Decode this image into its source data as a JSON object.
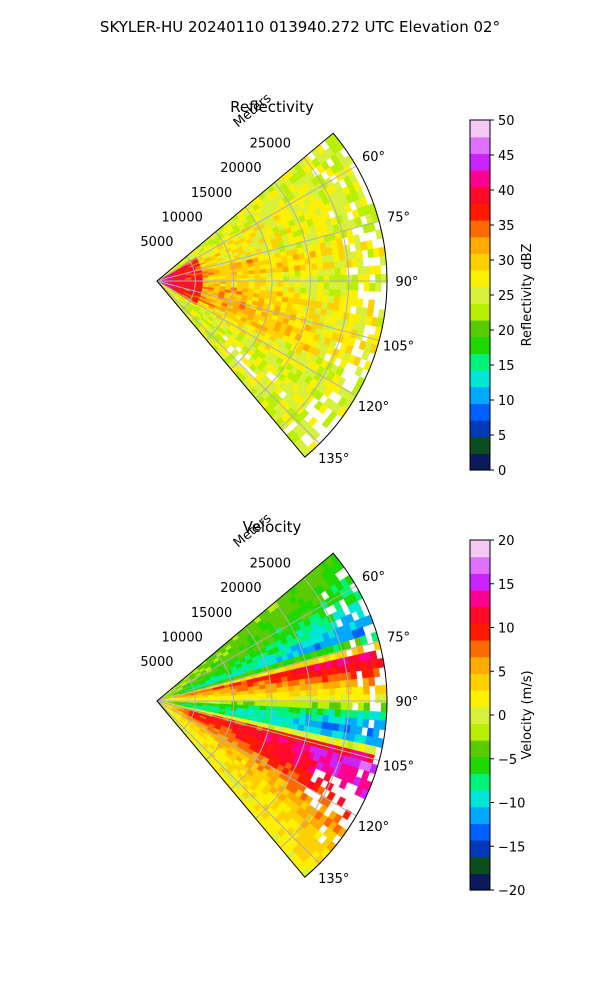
{
  "figure": {
    "suptitle": "SKYLER-HU  20240110  013940.272 UTC Elevation 02°"
  },
  "chart_data": [
    {
      "type": "heatmap",
      "projection": "polar-sector",
      "title": "Reflectivity",
      "radial_label": "Meters",
      "radial_ticks": [
        5000,
        10000,
        15000,
        20000,
        25000
      ],
      "radial_tick_labels": [
        "5000",
        "10000",
        "15000",
        "20000",
        "25000"
      ],
      "rlim": [
        0,
        30000
      ],
      "theta_range_deg": [
        50,
        140
      ],
      "angle_ticks": [
        60,
        75,
        90,
        105,
        120,
        135
      ],
      "angle_tick_labels": [
        "60°",
        "75°",
        "90°",
        "105°",
        "120°",
        "135°"
      ],
      "grid": true,
      "colorbar": {
        "label": "Reflectivity dBZ",
        "vmin": 0,
        "vmax": 50,
        "ticks": [
          0,
          5,
          10,
          15,
          20,
          25,
          30,
          35,
          40,
          45,
          50
        ],
        "tick_labels": [
          "0",
          "5",
          "10",
          "15",
          "20",
          "25",
          "30",
          "35",
          "40",
          "45",
          "50"
        ],
        "colors": [
          "#0c1a5a",
          "#0c4d1e",
          "#003ab8",
          "#0060ff",
          "#00a8ff",
          "#00e6d6",
          "#00f27a",
          "#1ed800",
          "#5acb00",
          "#b7f000",
          "#d6f03c",
          "#fff000",
          "#ffd000",
          "#ffaa00",
          "#ff6a00",
          "#ff1a00",
          "#ff0a2a",
          "#ff0090",
          "#c824ff",
          "#e070ff",
          "#f5c8f5"
        ]
      },
      "structure": {
        "near_range_max_dbz": 42,
        "core_bands_deg": [
          [
            78,
            86
          ],
          [
            96,
            116
          ]
        ],
        "core_dbz": 34,
        "background_dbz": 26,
        "edge_dbz": 22
      }
    },
    {
      "type": "heatmap",
      "projection": "polar-sector",
      "title": "Velocity",
      "radial_label": "Meters",
      "radial_ticks": [
        5000,
        10000,
        15000,
        20000,
        25000
      ],
      "radial_tick_labels": [
        "5000",
        "10000",
        "15000",
        "20000",
        "25000"
      ],
      "rlim": [
        0,
        30000
      ],
      "theta_range_deg": [
        50,
        140
      ],
      "angle_ticks": [
        60,
        75,
        90,
        105,
        120,
        135
      ],
      "angle_tick_labels": [
        "60°",
        "75°",
        "90°",
        "105°",
        "120°",
        "135°"
      ],
      "grid": true,
      "colorbar": {
        "label": "Velocity (m/s)",
        "vmin": -20,
        "vmax": 20,
        "ticks": [
          -20,
          -15,
          -10,
          -5,
          0,
          5,
          10,
          15,
          20
        ],
        "tick_labels": [
          "−20",
          "−15",
          "−10",
          "−5",
          "0",
          "5",
          "10",
          "15",
          "20"
        ],
        "colors": [
          "#0c1a5a",
          "#0c4d1e",
          "#003ab8",
          "#0060ff",
          "#00a8ff",
          "#00e6d6",
          "#00f27a",
          "#1ed800",
          "#5acb00",
          "#b7f000",
          "#d6f03c",
          "#fff000",
          "#ffd000",
          "#ffaa00",
          "#ff6a00",
          "#ff1a00",
          "#ff0a2a",
          "#ff0090",
          "#c824ff",
          "#e070ff",
          "#f5c8f5"
        ]
      },
      "structure": {
        "velocity_profile_deg": [
          [
            50,
            -4
          ],
          [
            62,
            -6
          ],
          [
            72,
            -12
          ],
          [
            78,
            12
          ],
          [
            86,
            4
          ],
          [
            90,
            1
          ],
          [
            94,
            -8
          ],
          [
            100,
            -13
          ],
          [
            106,
            15
          ],
          [
            114,
            12
          ],
          [
            125,
            5
          ],
          [
            140,
            1
          ]
        ]
      }
    }
  ]
}
